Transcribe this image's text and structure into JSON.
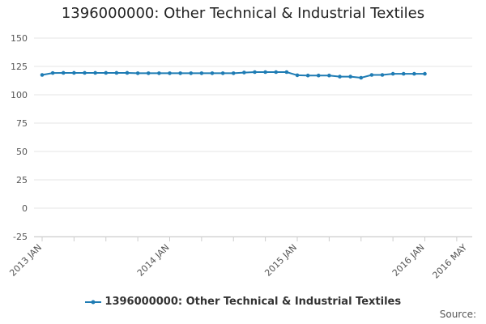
{
  "chart_data": {
    "type": "line",
    "title": "1396000000: Other Technical & Industrial Textiles",
    "xlabel": "",
    "ylabel": "",
    "ylim": [
      -25,
      150
    ],
    "yticks": [
      150,
      125,
      100,
      75,
      50,
      25,
      0,
      -25
    ],
    "xrange": [
      "2013-01",
      "2016-05"
    ],
    "xticks": [
      {
        "date": "2013-01",
        "label": "2013 JAN"
      },
      {
        "date": "2014-01",
        "label": "2014 JAN"
      },
      {
        "date": "2015-01",
        "label": "2015 JAN"
      },
      {
        "date": "2016-01",
        "label": "2016 JAN"
      },
      {
        "date": "2016-05",
        "label": "2016 MAY"
      }
    ],
    "grid": true,
    "legend_position": "bottom",
    "series": [
      {
        "name": "1396000000: Other Technical & Industrial Textiles",
        "color": "#1f7cb4",
        "x": [
          "2013-01",
          "2013-02",
          "2013-03",
          "2013-04",
          "2013-05",
          "2013-06",
          "2013-07",
          "2013-08",
          "2013-09",
          "2013-10",
          "2013-11",
          "2013-12",
          "2014-01",
          "2014-02",
          "2014-03",
          "2014-04",
          "2014-05",
          "2014-06",
          "2014-07",
          "2014-08",
          "2014-09",
          "2014-10",
          "2014-11",
          "2014-12",
          "2015-01",
          "2015-02",
          "2015-03",
          "2015-04",
          "2015-05",
          "2015-06",
          "2015-07",
          "2015-08",
          "2015-09",
          "2015-10",
          "2015-11",
          "2015-12",
          "2016-01"
        ],
        "values": [
          117.5,
          119.2,
          119.3,
          119.3,
          119.3,
          119.3,
          119.3,
          119.3,
          119.3,
          119.0,
          119.0,
          119.0,
          119.0,
          119.0,
          119.0,
          119.0,
          119.0,
          119.0,
          119.0,
          119.6,
          120.0,
          120.0,
          120.0,
          120.0,
          117.2,
          117.0,
          117.0,
          117.0,
          116.0,
          116.0,
          115.0,
          117.5,
          117.5,
          118.5,
          118.5,
          118.5,
          118.5
        ]
      }
    ]
  },
  "legend": {
    "label": "1396000000: Other Technical & Industrial Textiles"
  },
  "source": {
    "label": "Source:"
  }
}
